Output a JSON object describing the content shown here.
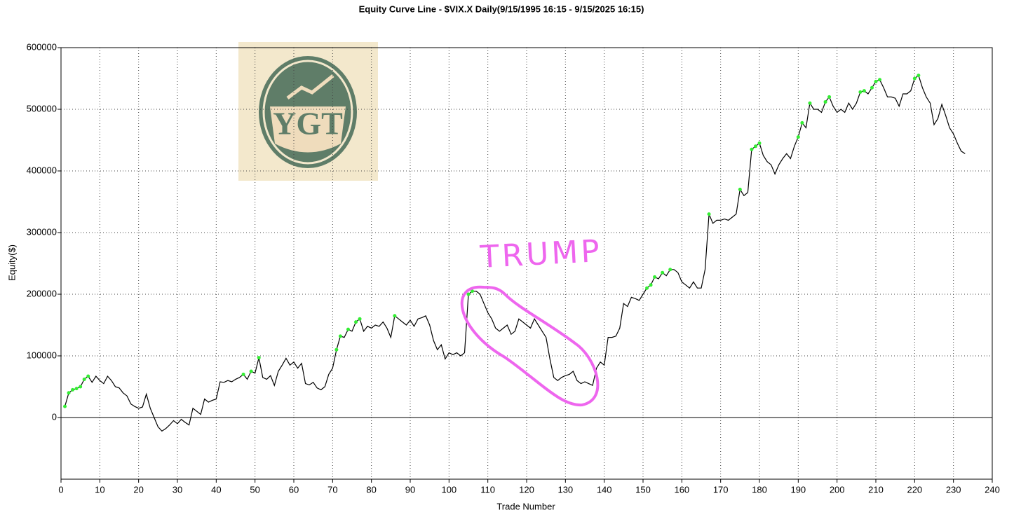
{
  "chart_data": {
    "type": "line",
    "title": "Equity Curve Line - $VIX.X Daily(9/15/1995 16:15 - 9/15/2025 16:15)",
    "x_label": "Trade Number",
    "y_label": "Equity($)",
    "annotation": "TRUMP",
    "logo_text": "YGT",
    "color": "#000000",
    "new_high_marker_color": "#33ee33",
    "grid": true,
    "xlim": [
      0,
      240
    ],
    "xticks": [
      0,
      10,
      20,
      30,
      40,
      50,
      60,
      70,
      80,
      90,
      100,
      110,
      120,
      130,
      140,
      150,
      160,
      170,
      180,
      190,
      200,
      210,
      220,
      230,
      240
    ],
    "ylim": [
      -100000,
      600000
    ],
    "yticks": [
      0,
      100000,
      200000,
      300000,
      400000,
      500000,
      600000
    ],
    "x": [
      1,
      2,
      3,
      4,
      5,
      6,
      7,
      8,
      9,
      10,
      11,
      12,
      13,
      14,
      15,
      16,
      17,
      18,
      19,
      20,
      21,
      22,
      23,
      24,
      25,
      26,
      27,
      28,
      29,
      30,
      31,
      32,
      33,
      34,
      35,
      36,
      37,
      38,
      39,
      40,
      41,
      42,
      43,
      44,
      45,
      46,
      47,
      48,
      49,
      50,
      51,
      52,
      53,
      54,
      55,
      56,
      57,
      58,
      59,
      60,
      61,
      62,
      63,
      64,
      65,
      66,
      67,
      68,
      69,
      70,
      71,
      72,
      73,
      74,
      75,
      76,
      77,
      78,
      79,
      80,
      81,
      82,
      83,
      84,
      85,
      86,
      87,
      88,
      89,
      90,
      91,
      92,
      93,
      94,
      95,
      96,
      97,
      98,
      99,
      100,
      101,
      102,
      103,
      104,
      105,
      106,
      107,
      108,
      109,
      110,
      111,
      112,
      113,
      114,
      115,
      116,
      117,
      118,
      119,
      120,
      121,
      122,
      123,
      124,
      125,
      126,
      127,
      128,
      129,
      130,
      131,
      132,
      133,
      134,
      135,
      136,
      137,
      138,
      139,
      140,
      141,
      142,
      143,
      144,
      145,
      146,
      147,
      148,
      149,
      150,
      151,
      152,
      153,
      154,
      155,
      156,
      157,
      158,
      159,
      160,
      161,
      162,
      163,
      164,
      165,
      166,
      167,
      168,
      169,
      170,
      171,
      172,
      173,
      174,
      175,
      176,
      177,
      178,
      179,
      180,
      181,
      182,
      183,
      184,
      185,
      186,
      187,
      188,
      189,
      190,
      191,
      192,
      193,
      194,
      195,
      196,
      197,
      198,
      199,
      200,
      201,
      202,
      203,
      204,
      205,
      206,
      207,
      208,
      209,
      210,
      211,
      212,
      213,
      214,
      215,
      216,
      217,
      218,
      219,
      220,
      221,
      222,
      223,
      224,
      225,
      226,
      227,
      228,
      229,
      230,
      231,
      232,
      233
    ],
    "values": [
      18000,
      40000,
      45000,
      47000,
      50000,
      62000,
      67000,
      57000,
      67000,
      60000,
      55000,
      67000,
      60000,
      50000,
      48000,
      40000,
      35000,
      22000,
      18000,
      15000,
      17000,
      38000,
      15000,
      0,
      -15000,
      -22000,
      -18000,
      -12000,
      -5000,
      -10000,
      -3000,
      -8000,
      -12000,
      15000,
      10000,
      5000,
      30000,
      25000,
      28000,
      30000,
      58000,
      57000,
      60000,
      58000,
      62000,
      65000,
      70000,
      62000,
      75000,
      72000,
      97000,
      65000,
      62000,
      68000,
      52000,
      75000,
      85000,
      96000,
      85000,
      90000,
      80000,
      88000,
      55000,
      53000,
      57000,
      48000,
      45000,
      50000,
      70000,
      80000,
      110000,
      132000,
      130000,
      143000,
      140000,
      155000,
      160000,
      140000,
      148000,
      145000,
      150000,
      148000,
      155000,
      145000,
      130000,
      165000,
      160000,
      155000,
      150000,
      158000,
      148000,
      160000,
      162000,
      165000,
      150000,
      125000,
      110000,
      118000,
      95000,
      105000,
      102000,
      105000,
      100000,
      105000,
      200000,
      205000,
      205000,
      200000,
      185000,
      170000,
      160000,
      145000,
      140000,
      145000,
      150000,
      135000,
      140000,
      160000,
      155000,
      150000,
      145000,
      160000,
      150000,
      140000,
      130000,
      95000,
      65000,
      60000,
      65000,
      68000,
      70000,
      75000,
      60000,
      55000,
      58000,
      55000,
      52000,
      80000,
      90000,
      85000,
      130000,
      130000,
      132000,
      145000,
      185000,
      180000,
      195000,
      193000,
      190000,
      200000,
      210000,
      215000,
      228000,
      225000,
      235000,
      230000,
      240000,
      240000,
      235000,
      220000,
      215000,
      210000,
      220000,
      210000,
      210000,
      240000,
      330000,
      315000,
      320000,
      320000,
      322000,
      320000,
      325000,
      330000,
      370000,
      360000,
      365000,
      435000,
      440000,
      445000,
      425000,
      415000,
      410000,
      395000,
      410000,
      420000,
      428000,
      420000,
      440000,
      455000,
      478000,
      470000,
      510000,
      500000,
      500000,
      495000,
      512000,
      520000,
      505000,
      495000,
      500000,
      495000,
      510000,
      500000,
      510000,
      528000,
      530000,
      525000,
      535000,
      545000,
      548000,
      535000,
      520000,
      520000,
      518000,
      505000,
      525000,
      525000,
      530000,
      550000,
      555000,
      535000,
      520000,
      510000,
      475000,
      485000,
      508000,
      490000,
      470000,
      460000,
      445000,
      432000,
      428000
    ]
  }
}
